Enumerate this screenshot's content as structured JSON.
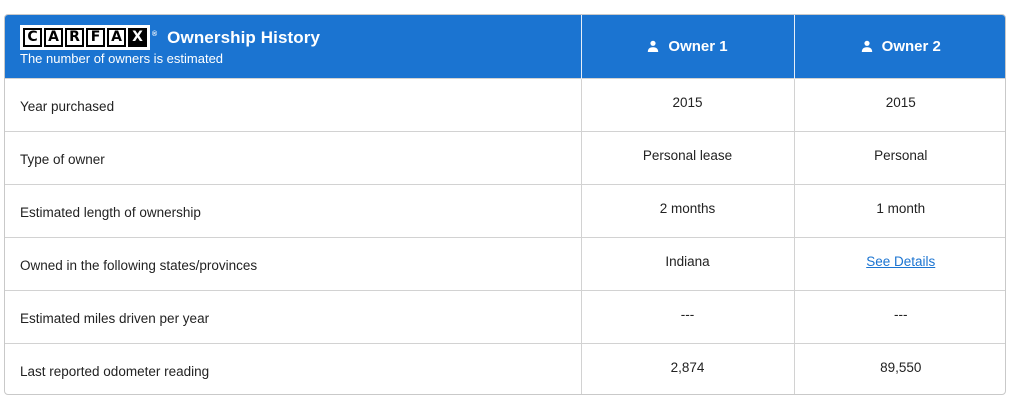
{
  "header": {
    "logo_letters": [
      "C",
      "A",
      "R",
      "F",
      "A",
      "X"
    ],
    "logo_trademark": "®",
    "title": "Ownership History",
    "subtitle": "The number of owners is estimated",
    "owners": [
      {
        "label": "Owner 1",
        "icon": "person-icon"
      },
      {
        "label": "Owner 2",
        "icon": "person-icon"
      }
    ]
  },
  "rows": [
    {
      "label": "Year purchased",
      "owner1": "2015",
      "owner2": "2015"
    },
    {
      "label": "Type of owner",
      "owner1": "Personal lease",
      "owner2": "Personal"
    },
    {
      "label": "Estimated length of ownership",
      "owner1": "2 months",
      "owner2": "1 month"
    },
    {
      "label": "Owned in the following states/provinces",
      "owner1": "Indiana",
      "owner2": "See Details"
    },
    {
      "label": "Estimated miles driven per year",
      "owner1": "---",
      "owner2": "---"
    },
    {
      "label": "Last reported odometer reading",
      "owner1": "2,874",
      "owner2": "89,550"
    }
  ],
  "colors": {
    "header_bg": "#1b74d1",
    "link": "#1b74d1",
    "border": "#d2d2d2"
  }
}
